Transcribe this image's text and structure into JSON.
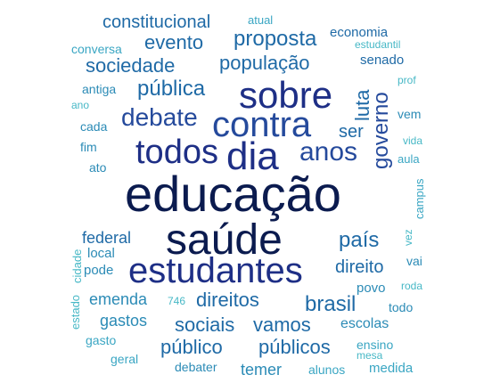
{
  "colors": {
    "darkest": "#0b1b4f",
    "dark": "#1e2f86",
    "blue": "#254a9c",
    "mid": "#1f6aa6",
    "teal": "#2b8bb6",
    "light": "#3aa6c3",
    "pale": "#47b8c6"
  },
  "words": [
    {
      "text": "educação"
    },
    {
      "text": "saúde"
    },
    {
      "text": "estudantes"
    },
    {
      "text": "sobre"
    },
    {
      "text": "contra"
    },
    {
      "text": "dia"
    },
    {
      "text": "todos"
    },
    {
      "text": "anos"
    },
    {
      "text": "debate"
    },
    {
      "text": "governo"
    },
    {
      "text": "pública"
    },
    {
      "text": "proposta"
    },
    {
      "text": "sociedade"
    },
    {
      "text": "população"
    },
    {
      "text": "evento"
    },
    {
      "text": "constitucional"
    },
    {
      "text": "economia"
    },
    {
      "text": "luta"
    },
    {
      "text": "ser"
    },
    {
      "text": "senado"
    },
    {
      "text": "país"
    },
    {
      "text": "direito"
    },
    {
      "text": "brasil"
    },
    {
      "text": "direitos"
    },
    {
      "text": "sociais"
    },
    {
      "text": "vamos"
    },
    {
      "text": "público"
    },
    {
      "text": "públicos"
    },
    {
      "text": "federal"
    },
    {
      "text": "emenda"
    },
    {
      "text": "escolas"
    },
    {
      "text": "gastos"
    },
    {
      "text": "temer"
    },
    {
      "text": "povo"
    },
    {
      "text": "local"
    },
    {
      "text": "pode"
    },
    {
      "text": "vem"
    },
    {
      "text": "antiga"
    },
    {
      "text": "cada"
    },
    {
      "text": "fim"
    },
    {
      "text": "ato"
    },
    {
      "text": "conversa"
    },
    {
      "text": "atual"
    },
    {
      "text": "estudantil"
    },
    {
      "text": "prof"
    },
    {
      "text": "ano"
    },
    {
      "text": "vida"
    },
    {
      "text": "aula"
    },
    {
      "text": "campus"
    },
    {
      "text": "vez"
    },
    {
      "text": "vai"
    },
    {
      "text": "roda"
    },
    {
      "text": "todo"
    },
    {
      "text": "746"
    },
    {
      "text": "gasto"
    },
    {
      "text": "geral"
    },
    {
      "text": "debater"
    },
    {
      "text": "alunos"
    },
    {
      "text": "ensino"
    },
    {
      "text": "mesa"
    },
    {
      "text": "medida"
    },
    {
      "text": "cidade"
    },
    {
      "text": "estado"
    }
  ]
}
